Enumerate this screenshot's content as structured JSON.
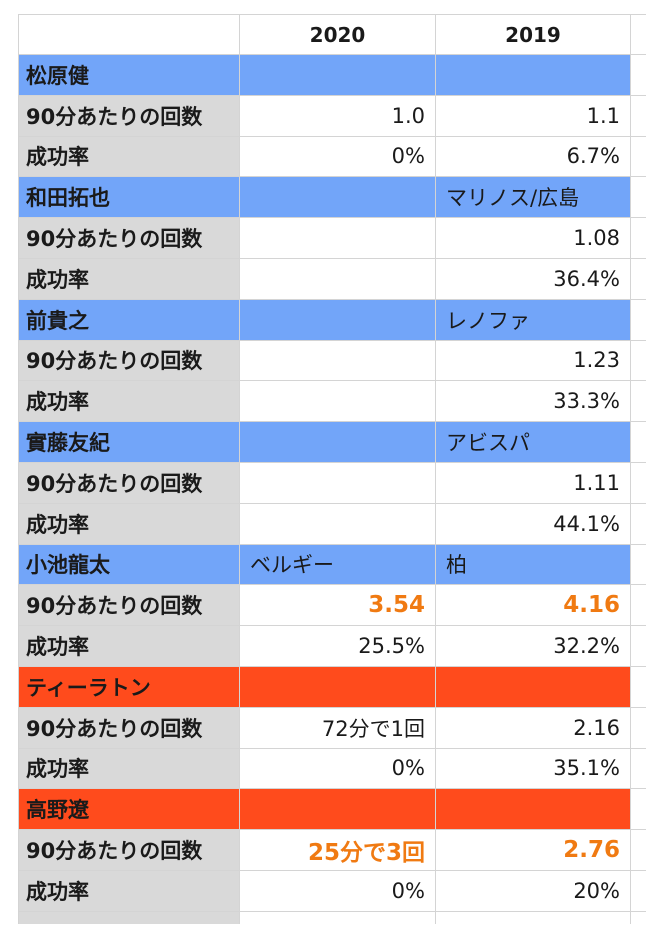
{
  "header": {
    "col1": "2020",
    "col2": "2019"
  },
  "colors": {
    "blue_group": "#72a5f9",
    "red_group": "#ff4b1c",
    "label_gray": "#d9d9d9",
    "highlight": "#f07a12"
  },
  "players": [
    {
      "name": "松原健",
      "team2020": "",
      "team2019": "",
      "color": "blue",
      "rows": [
        {
          "label": "90分あたりの回数",
          "v2020": "1.0",
          "v2019": "1.1"
        },
        {
          "label": "成功率",
          "v2020": "0%",
          "v2019": "6.7%"
        }
      ]
    },
    {
      "name": "和田拓也",
      "team2020": "",
      "team2019": "マリノス/広島",
      "color": "blue",
      "rows": [
        {
          "label": "90分あたりの回数",
          "v2020": "",
          "v2019": "1.08"
        },
        {
          "label": "成功率",
          "v2020": "",
          "v2019": "36.4%"
        }
      ]
    },
    {
      "name": "前貴之",
      "team2020": "",
      "team2019": "レノファ",
      "color": "blue",
      "rows": [
        {
          "label": "90分あたりの回数",
          "v2020": "",
          "v2019": "1.23"
        },
        {
          "label": "成功率",
          "v2020": "",
          "v2019": "33.3%"
        }
      ]
    },
    {
      "name": "實藤友紀",
      "team2020": "",
      "team2019": "アビスパ",
      "color": "blue",
      "rows": [
        {
          "label": "90分あたりの回数",
          "v2020": "",
          "v2019": "1.11"
        },
        {
          "label": "成功率",
          "v2020": "",
          "v2019": "44.1%"
        }
      ]
    },
    {
      "name": "小池龍太",
      "team2020": "ベルギー",
      "team2019": "柏",
      "color": "blue",
      "rows": [
        {
          "label": "90分あたりの回数",
          "v2020": "3.54",
          "v2019": "4.16",
          "hl2020": true,
          "hl2019": true
        },
        {
          "label": "成功率",
          "v2020": "25.5%",
          "v2019": "32.2%"
        }
      ]
    },
    {
      "name": "ティーラトン",
      "team2020": "",
      "team2019": "",
      "color": "red",
      "rows": [
        {
          "label": "90分あたりの回数",
          "v2020": "72分で1回",
          "v2019": "2.16"
        },
        {
          "label": "成功率",
          "v2020": "0%",
          "v2019": "35.1%"
        }
      ]
    },
    {
      "name": "高野遼",
      "team2020": "",
      "team2019": "",
      "color": "red",
      "rows": [
        {
          "label": "90分あたりの回数",
          "v2020": "25分で3回",
          "v2019": "2.76",
          "hl2020": true,
          "hl2019": true
        },
        {
          "label": "成功率",
          "v2020": "0%",
          "v2019": "20%"
        }
      ]
    }
  ]
}
